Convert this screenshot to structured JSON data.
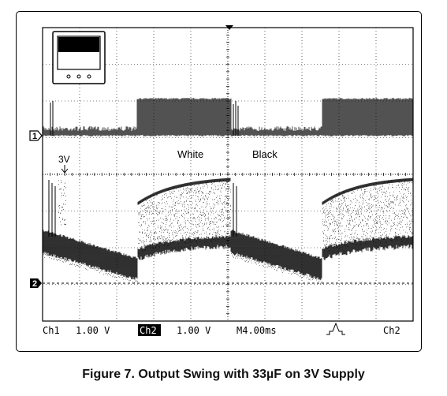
{
  "chart_data": {
    "type": "line",
    "title": "",
    "caption": "Figure 7. Output Swing with 33µF on 3V Supply",
    "grid": true,
    "x_divisions": 10,
    "y_divisions": 8,
    "channels": [
      {
        "name": "1",
        "marker": "1",
        "volts_per_div": "1.00 V"
      },
      {
        "name": "2",
        "marker": "2",
        "volts_per_div": "1.00 V"
      }
    ],
    "annotations": {
      "white": "White",
      "black": "Black",
      "level": "3V"
    },
    "status_bar": {
      "ch1_label": "Ch1",
      "ch1_scale": "1.00 V",
      "ch2_label": "Ch2",
      "ch2_scale": "1.00 V",
      "timebase": "M4.00ms",
      "trigger_source": "Ch2"
    }
  }
}
